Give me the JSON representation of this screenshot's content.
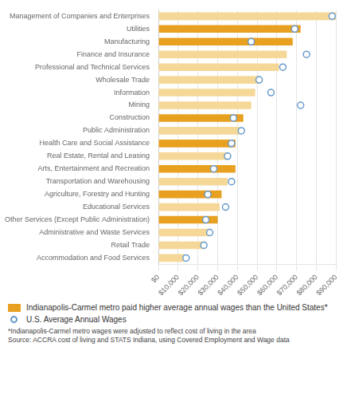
{
  "chart_data": {
    "type": "bar",
    "orientation": "horizontal",
    "categories": [
      "Management of Companies and Enterprises",
      "Utilities",
      "Manufacturing",
      "Finance and Insurance",
      "Professional and Technical Services",
      "Wholesale Trade",
      "Information",
      "Mining",
      "Construction",
      "Public Administration",
      "Health Care and Social Assistance",
      "Real Estate, Rental and Leasing",
      "Arts, Entertainment and Recreation",
      "Transportation and Warehousing",
      "Agriculture, Forestry and Hunting",
      "Educational Services",
      "Other Services (Except Public Administration)",
      "Administrative and Waste Services",
      "Retail Trade",
      "Accommodation and Food Services"
    ],
    "series": [
      {
        "name": "Indianapolis-Carmel metro paid higher average annual wages than the United States*",
        "type": "bar",
        "color": "#E8A020",
        "colors": [
          "#F5D898",
          "#E8A020",
          "#E8A020",
          "#F5D898",
          "#F5D898",
          "#F5D898",
          "#F5D898",
          "#F5D898",
          "#E8A020",
          "#F5D898",
          "#E8A020",
          "#F5D898",
          "#E8A020",
          "#F5D898",
          "#E8A020",
          "#F5D898",
          "#E8A020",
          "#F5D898",
          "#F5D898",
          "#F5D898"
        ],
        "values": [
          90000,
          72000,
          68000,
          65000,
          61000,
          51000,
          49000,
          47000,
          43000,
          41000,
          39000,
          35000,
          39000,
          35000,
          32000,
          31000,
          30000,
          26000,
          24000,
          13000
        ]
      },
      {
        "name": "U.S. Average Annual Wages",
        "type": "scatter",
        "marker": "circle",
        "color": "#6699CC",
        "values": [
          88000,
          69000,
          47000,
          75000,
          63000,
          51000,
          57000,
          72000,
          38000,
          42000,
          37000,
          35000,
          28000,
          37000,
          25000,
          34000,
          24000,
          26000,
          23000,
          14000
        ]
      }
    ],
    "xlim": [
      0,
      90000
    ],
    "xticks": [
      {
        "value": 0,
        "label": "$0"
      },
      {
        "value": 10000,
        "label": "$10,000"
      },
      {
        "value": 20000,
        "label": "$20,000"
      },
      {
        "value": 30000,
        "label": "$30,000"
      },
      {
        "value": 40000,
        "label": "$40,000"
      },
      {
        "value": 50000,
        "label": "$50,000"
      },
      {
        "value": 60000,
        "label": "$60,000"
      },
      {
        "value": 70000,
        "label": "$70,000"
      },
      {
        "value": 80000,
        "label": "$80,000"
      },
      {
        "value": 90000,
        "label": "$90,000"
      }
    ],
    "grid": true,
    "legend": "bottom",
    "annotations": [
      "*Indianapolis-Carmel metro wages were adjusted to reflect cost of living in the area",
      "Source: ACCRA cost of living and STATS Indiana, using Covered Employment and Wage data"
    ]
  }
}
